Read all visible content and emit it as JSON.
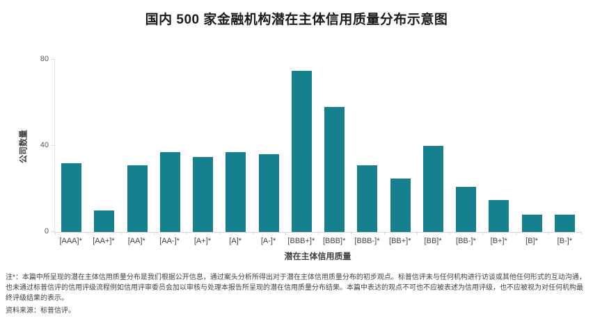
{
  "figure": {
    "footnote": "注*：本篇中所呈现的潜在主体信用质量分布是我们根据公开信息，通过案头分析所得出对于潜在主体信用质量分布的初步观点。标普信评未与任何机构进行访谈或其他任何形式的互动沟通，也未通过标普信评的信用评级流程例如信用评审委员会加以审核与处理本报告所呈现的潜在信用质量分布结果。本篇中表达的观点不可也不应被表述为信用评级，也不应被视为对任何机构最终评级结果的表示。",
    "source": "资料来源：标普信评。"
  },
  "chart_data": {
    "type": "bar",
    "title": "国内 500 家金融机构潜在主体信用质量分布示意图",
    "xlabel": "潜在主体信用质量",
    "ylabel": "公司数量",
    "categories": [
      "[AAA]*",
      "[AA+]*",
      "[AA]*",
      "[AA-]*",
      "[A+]*",
      "[A]*",
      "[A-]*",
      "[BBB+]*",
      "[BBB]*",
      "[BBB-]*",
      "[BB+]*",
      "[BB]*",
      "[BB-]*",
      "[B+]*",
      "[B]*",
      "[B-]*"
    ],
    "values": [
      32,
      10,
      31,
      37,
      35,
      37,
      36,
      75,
      58,
      31,
      25,
      40,
      21,
      15,
      8,
      8
    ],
    "ylim": [
      0,
      80
    ],
    "yticks": [
      0,
      40,
      80
    ],
    "bar_color": "#17808F",
    "grid": false,
    "legend_position": "none"
  }
}
